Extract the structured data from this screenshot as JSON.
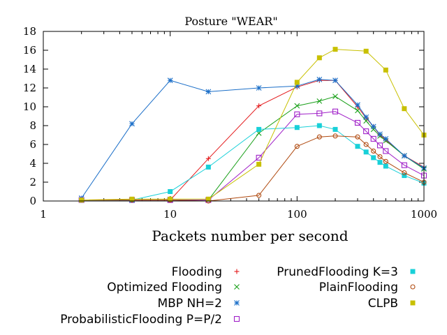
{
  "chart_data": {
    "type": "line",
    "title": "Posture \"WEAR\"",
    "xlabel": "Packets number per second",
    "ylabel": "",
    "xscale": "log",
    "xlim": [
      1,
      1000
    ],
    "ylim": [
      0,
      18
    ],
    "xticks": [
      1,
      10,
      100,
      1000
    ],
    "xtick_labels": [
      "1",
      "10",
      "100",
      "1000"
    ],
    "yticks": [
      0,
      2,
      4,
      6,
      8,
      10,
      12,
      14,
      16,
      18
    ],
    "ytick_labels": [
      "0",
      "2",
      "4",
      "6",
      "8",
      "10",
      "12",
      "14",
      "16",
      "18"
    ],
    "legend_position": "bottom",
    "series": [
      {
        "name": "Flooding",
        "color": "#e41a1c",
        "marker": "plus",
        "x": [
          2,
          5,
          10,
          20,
          50,
          100,
          150,
          200,
          300,
          350,
          400,
          450,
          500,
          700,
          1000
        ],
        "y": [
          0.1,
          0.1,
          0.1,
          4.5,
          10.1,
          12.1,
          12.8,
          12.8,
          10.0,
          8.8,
          7.9,
          7.0,
          6.5,
          4.8,
          3.6
        ]
      },
      {
        "name": "Optimized Flooding",
        "color": "#1aa01a",
        "marker": "cross",
        "x": [
          2,
          5,
          10,
          20,
          50,
          100,
          150,
          200,
          300,
          350,
          400,
          450,
          500,
          700,
          1000
        ],
        "y": [
          0.1,
          0.1,
          0.1,
          0.1,
          7.2,
          10.1,
          10.6,
          11.1,
          9.6,
          8.5,
          7.6,
          6.9,
          6.4,
          4.8,
          3.4
        ]
      },
      {
        "name": "MBP NH=2",
        "color": "#1a6ec8",
        "marker": "star",
        "x": [
          2,
          5,
          10,
          20,
          50,
          100,
          150,
          200,
          300,
          350,
          400,
          450,
          500,
          700,
          1000
        ],
        "y": [
          0.3,
          8.2,
          12.8,
          11.6,
          12.0,
          12.2,
          12.9,
          12.8,
          10.2,
          8.9,
          7.9,
          7.1,
          6.6,
          4.8,
          3.5
        ]
      },
      {
        "name": "ProbabilisticFlooding P=P/2",
        "color": "#a020c8",
        "marker": "square-open",
        "x": [
          2,
          5,
          10,
          20,
          50,
          100,
          150,
          200,
          300,
          350,
          400,
          450,
          500,
          700,
          1000
        ],
        "y": [
          0.1,
          0.1,
          0.1,
          0.1,
          4.6,
          9.2,
          9.3,
          9.5,
          8.3,
          7.4,
          6.6,
          5.9,
          5.3,
          3.8,
          2.7
        ]
      },
      {
        "name": "PrunedFlooding K=3",
        "color": "#18d0d8",
        "marker": "square-filled",
        "x": [
          2,
          5,
          10,
          20,
          50,
          100,
          150,
          200,
          300,
          350,
          400,
          450,
          500,
          700,
          1000
        ],
        "y": [
          0.1,
          0.1,
          1.0,
          3.6,
          7.6,
          7.8,
          8.0,
          7.6,
          5.8,
          5.2,
          4.6,
          4.1,
          3.7,
          2.7,
          1.9
        ]
      },
      {
        "name": "PlainFlooding",
        "color": "#b04a10",
        "marker": "circle-open",
        "x": [
          2,
          5,
          10,
          20,
          50,
          100,
          150,
          200,
          300,
          350,
          400,
          450,
          500,
          700,
          1000
        ],
        "y": [
          0.1,
          0.1,
          0.1,
          0.0,
          0.6,
          5.8,
          6.8,
          6.9,
          6.8,
          6.0,
          5.3,
          4.7,
          4.2,
          3.0,
          2.0
        ]
      },
      {
        "name": "CLPB",
        "color": "#c8c000",
        "marker": "square-filled",
        "x": [
          2,
          5,
          10,
          20,
          50,
          100,
          150,
          200,
          350,
          500,
          700,
          1000
        ],
        "y": [
          0.1,
          0.2,
          0.2,
          0.2,
          3.9,
          12.6,
          15.2,
          16.1,
          15.9,
          13.9,
          9.8,
          7.0
        ]
      }
    ]
  }
}
